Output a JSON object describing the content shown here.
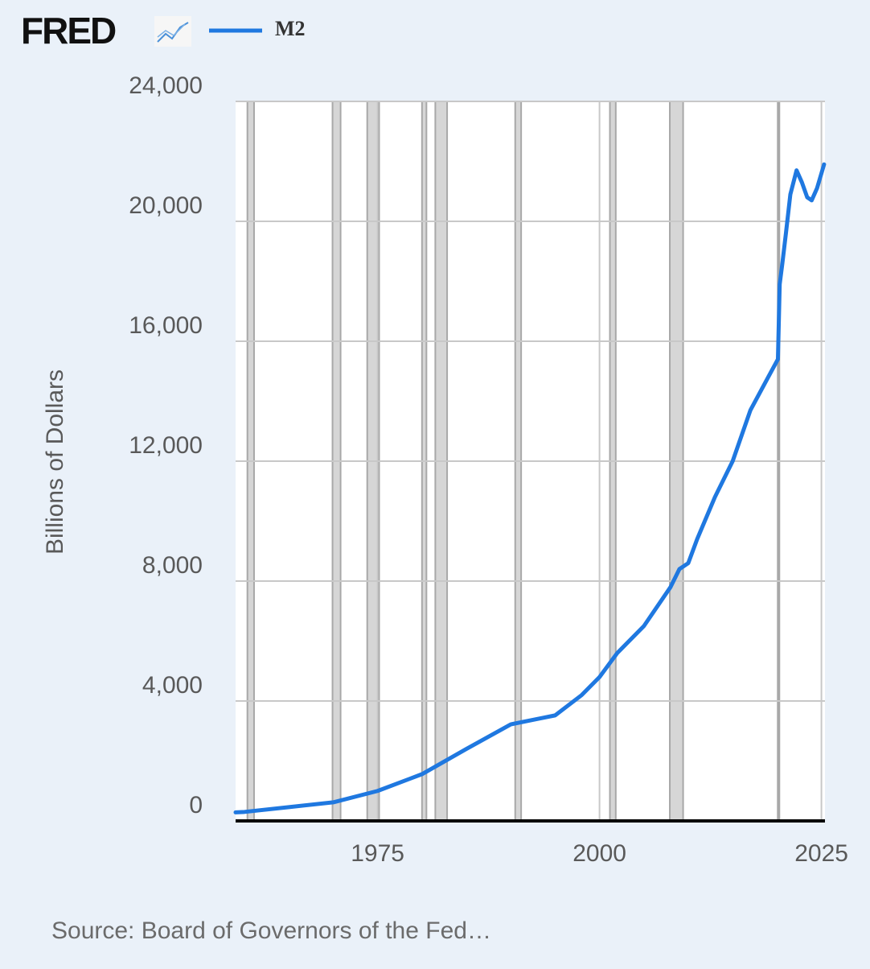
{
  "chart_data": {
    "type": "line",
    "logo": "FRED",
    "y_label": "Billions of Dollars",
    "source": "Source: Board of Governors of the Fed…",
    "x": [
      1959,
      1960,
      1965,
      1970,
      1975,
      1980,
      1985,
      1990,
      1993,
      1995,
      1998,
      2000,
      2002,
      2005,
      2008,
      2009,
      2010,
      2011,
      2013,
      2015,
      2017,
      2019,
      2020.1,
      2020.3,
      2020.6,
      2021,
      2021.5,
      2022.2,
      2022.8,
      2023.4,
      2023.9,
      2024.5,
      2025.3
    ],
    "series": [
      {
        "name": "M2",
        "color": "#1f78e0",
        "values": [
          286,
          300,
          460,
          620,
          1000,
          1560,
          2400,
          3220,
          3400,
          3520,
          4200,
          4800,
          5600,
          6500,
          7800,
          8400,
          8600,
          9400,
          10800,
          12000,
          13700,
          14800,
          15400,
          17900,
          18600,
          19600,
          20900,
          21700,
          21300,
          20800,
          20700,
          21100,
          21900
        ]
      }
    ],
    "recessions": [
      [
        1960.33,
        1961.08
      ],
      [
        1969.92,
        1970.83
      ],
      [
        1973.83,
        1975.17
      ],
      [
        1980.0,
        1980.5
      ],
      [
        1981.5,
        1982.83
      ],
      [
        1990.5,
        1991.17
      ],
      [
        2001.17,
        2001.83
      ],
      [
        2007.92,
        2009.42
      ],
      [
        2020.08,
        2020.25
      ]
    ],
    "xlim": [
      1959,
      2025.4
    ],
    "xticks": [
      1975,
      2000,
      2025
    ],
    "ylim": [
      0,
      24000
    ],
    "yticks": [
      0,
      {
        "value": 4000,
        "label": "4,000"
      },
      {
        "value": 8000,
        "label": "8,000"
      },
      {
        "value": 12000,
        "label": "12,000"
      },
      {
        "value": 16000,
        "label": "16,000"
      },
      {
        "value": 20000,
        "label": "20,000"
      },
      {
        "value": 24000,
        "label": "24,000"
      }
    ],
    "grid": true
  }
}
